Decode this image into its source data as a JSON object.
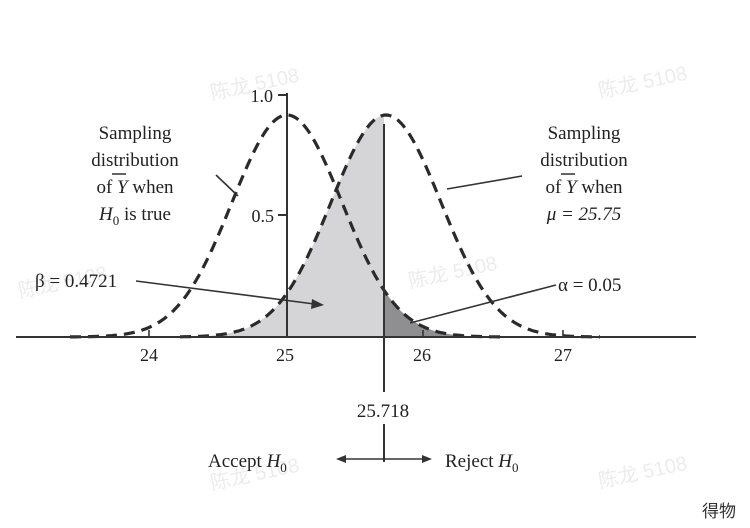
{
  "diagram": {
    "x_ticks": [
      "24",
      "25",
      "26",
      "27"
    ],
    "y_ticks": [
      "1.0",
      "0.5"
    ],
    "left_label": {
      "line1": "Sampling",
      "line2": "distribution",
      "line3_pre": "of ",
      "line3_sym": "Y",
      "line3_post": " when",
      "line4_sym": "H",
      "line4_sub": "0",
      "line4_post": " is true"
    },
    "right_label": {
      "line1": "Sampling",
      "line2": "distribution",
      "line3_pre": "of ",
      "line3_sym": "Y",
      "line3_post": " when",
      "line4": "μ = 25.75"
    },
    "beta_label": "β = 0.4721",
    "alpha_label": "α = 0.05",
    "critical_value": "25.718",
    "accept": {
      "text": "Accept ",
      "sym": "H",
      "sub": "0"
    },
    "reject": {
      "text": "Reject ",
      "sym": "H",
      "sub": "0"
    },
    "watermarks": [
      "陈龙 5108",
      "陈龙 5108",
      "陈龙 5108",
      "陈龙 5108",
      "陈龙 5108",
      "陈龙 5108"
    ],
    "corner_text": "得物"
  }
}
